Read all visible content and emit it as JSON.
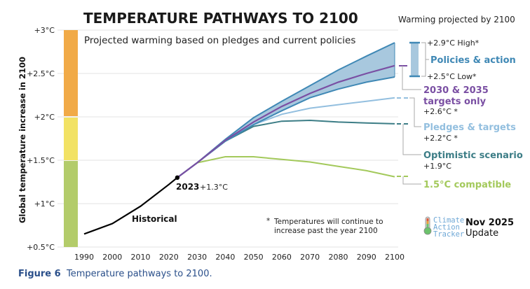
{
  "chart_data": {
    "type": "line",
    "title": "TEMPERATURE PATHWAYS TO 2100",
    "subtitle": "Projected warming based on pledges and current policies",
    "ylabel": "Global temperature increase in 2100",
    "xlabel": "",
    "xlim": [
      1990,
      2100
    ],
    "ylim": [
      0.5,
      3.0
    ],
    "grid": true,
    "x_ticks": [
      "1990",
      "2000",
      "2010",
      "2020",
      "2030",
      "2040",
      "2050",
      "2060",
      "2070",
      "2080",
      "2090",
      "2100"
    ],
    "y_ticks": [
      {
        "value": 3.0,
        "label": "+3°C"
      },
      {
        "value": 2.5,
        "label": "+2.5°C"
      },
      {
        "value": 2.0,
        "label": "+2°C"
      },
      {
        "value": 1.5,
        "label": "+1.5°C"
      },
      {
        "value": 1.0,
        "label": "+1°C"
      },
      {
        "value": 0.5,
        "label": "+0.5°C"
      }
    ],
    "risk_bands": [
      {
        "from": 2.0,
        "to": 3.0,
        "color": "#f1aa47"
      },
      {
        "from": 1.5,
        "to": 2.0,
        "color": "#f2e264"
      },
      {
        "from": 0.5,
        "to": 1.5,
        "color": "#b3cc6a"
      }
    ],
    "historical": {
      "name": "Historical",
      "color": "#000000",
      "x": [
        1990,
        2000,
        2010,
        2020,
        2023
      ],
      "y": [
        0.65,
        0.77,
        0.97,
        1.22,
        1.3
      ]
    },
    "marker_2023": {
      "year": "2023",
      "value_label": "+1.3°C",
      "x": 2023,
      "y": 1.3
    },
    "projection_x": [
      2023,
      2030,
      2040,
      2050,
      2060,
      2070,
      2080,
      2090,
      2100
    ],
    "band": {
      "name": "Policies & action",
      "color": "#3f88b5",
      "fill": "#a8c8de",
      "high": [
        1.3,
        1.47,
        1.74,
        1.99,
        2.18,
        2.36,
        2.54,
        2.7,
        2.855
      ],
      "low": [
        1.3,
        1.47,
        1.72,
        1.91,
        2.07,
        2.22,
        2.32,
        2.4,
        2.46
      ]
    },
    "series": [
      {
        "name": "2030 & 2035 targets only",
        "color": "#7a4fa3",
        "values": [
          1.3,
          1.47,
          1.73,
          1.94,
          2.12,
          2.27,
          2.4,
          2.5,
          2.59
        ]
      },
      {
        "name": "Pledges & targets",
        "color": "#93bfdf",
        "values": [
          1.3,
          1.47,
          1.73,
          1.91,
          2.03,
          2.1,
          2.14,
          2.18,
          2.22
        ]
      },
      {
        "name": "Optimistic scenario",
        "color": "#3c7d86",
        "values": [
          1.3,
          1.47,
          1.72,
          1.89,
          1.95,
          1.96,
          1.94,
          1.93,
          1.92
        ]
      },
      {
        "name": "1.5°C compatible",
        "color": "#a3c95b",
        "values": [
          1.3,
          1.47,
          1.54,
          1.54,
          1.51,
          1.48,
          1.43,
          1.38,
          1.31
        ]
      }
    ],
    "legend_header": "Warming projected by 2100",
    "legend": [
      {
        "name": "Policies & action",
        "color": "#3f88b5",
        "high_label": "+2.9°C High*",
        "low_label": "+2.5°C Low*"
      },
      {
        "name_lines": [
          "2030 & 2035",
          "targets only"
        ],
        "color": "#7a4fa3",
        "value_label": "+2.6°C *"
      },
      {
        "name": "Pledges & targets",
        "color": "#93bfdf",
        "value_label": "+2.2°C *"
      },
      {
        "name": "Optimistic scenario",
        "color": "#3c7d86",
        "value_label": "+1.9°C"
      },
      {
        "name": "1.5°C compatible",
        "color": "#a3c95b",
        "value_label": ""
      }
    ],
    "annotations": {
      "historical_label": "Historical",
      "note_star": "*",
      "note_line1": "Temperatures will continue to",
      "note_line2": "increase past the year 2100"
    }
  },
  "branding": {
    "logo_lines": [
      "Climate",
      "Action",
      "Tracker"
    ],
    "update_date": "Nov 2025",
    "update_label": "Update"
  },
  "caption": {
    "figure_label": "Figure 6",
    "text": "Temperature pathways to 2100."
  }
}
